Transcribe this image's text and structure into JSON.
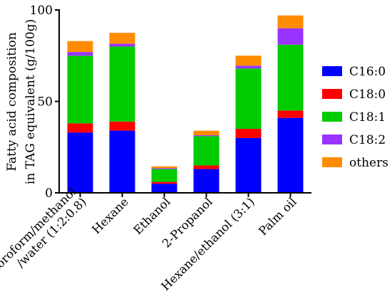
{
  "chart_data": {
    "type": "bar",
    "stacked": true,
    "title": "",
    "xlabel": "",
    "ylabel_lines": [
      "Fatty acid composition",
      "in TAG equivalent (g/100g)"
    ],
    "ylim": [
      0,
      100
    ],
    "yticks": [
      "0",
      "50",
      "100"
    ],
    "categories": [
      [
        "Chloroform/methanol",
        "/water (1:2:0.8)"
      ],
      [
        "Hexane"
      ],
      [
        "Ethanol"
      ],
      [
        "2-Propanol"
      ],
      [
        "Hexane/ethanol (3:1)"
      ],
      [
        "Palm oil"
      ]
    ],
    "legend_position": "right",
    "series": [
      {
        "name": "C16:0",
        "color": "#0000ff",
        "values": [
          33,
          34,
          5,
          13,
          30,
          41
        ]
      },
      {
        "name": "C18:0",
        "color": "#ff0000",
        "values": [
          5,
          5,
          1,
          2,
          5,
          4
        ]
      },
      {
        "name": "C18:1",
        "color": "#00cc00",
        "values": [
          37,
          41,
          7,
          16,
          33,
          36
        ]
      },
      {
        "name": "C18:2",
        "color": "#9933ff",
        "values": [
          2,
          1.5,
          0.5,
          0.5,
          1.5,
          9
        ]
      },
      {
        "name": "others",
        "color": "#ff8c00",
        "values": [
          6,
          6,
          1,
          2.5,
          5.5,
          7
        ]
      }
    ]
  }
}
